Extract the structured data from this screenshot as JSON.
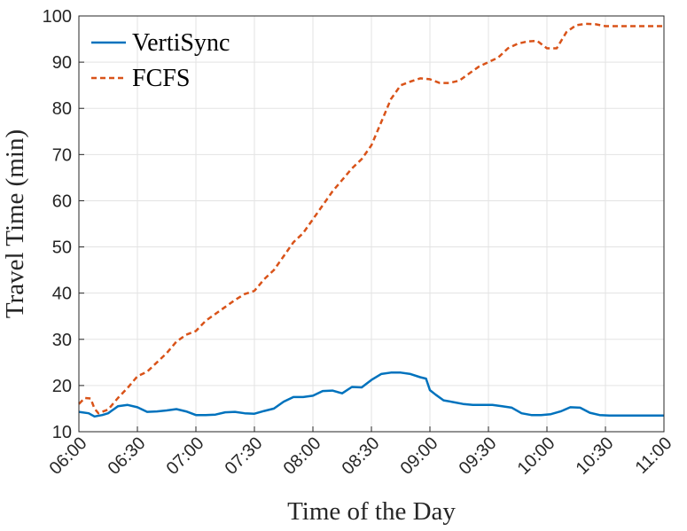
{
  "chart_data": {
    "type": "line",
    "title": "",
    "xlabel": "Time of the Day",
    "ylabel": "Travel Time (min)",
    "xlim": [
      0,
      300
    ],
    "ylim": [
      10,
      100
    ],
    "x_ticks": [
      {
        "x": 0,
        "label": "06:00"
      },
      {
        "x": 30,
        "label": "06:30"
      },
      {
        "x": 60,
        "label": "07:00"
      },
      {
        "x": 90,
        "label": "07:30"
      },
      {
        "x": 120,
        "label": "08:00"
      },
      {
        "x": 150,
        "label": "08:30"
      },
      {
        "x": 180,
        "label": "09:00"
      },
      {
        "x": 210,
        "label": "09:30"
      },
      {
        "x": 240,
        "label": "10:00"
      },
      {
        "x": 270,
        "label": "10:30"
      },
      {
        "x": 300,
        "label": "11:00"
      }
    ],
    "y_ticks": [
      10,
      20,
      30,
      40,
      50,
      60,
      70,
      80,
      90,
      100
    ],
    "grid": true,
    "legend_position": "top-left",
    "series": [
      {
        "name": "VertiSync",
        "color": "#0072BD",
        "style": "solid",
        "points": [
          [
            0,
            14.3
          ],
          [
            5,
            14
          ],
          [
            8,
            13.3
          ],
          [
            12,
            13.6
          ],
          [
            15,
            14
          ],
          [
            20,
            15.5
          ],
          [
            25,
            15.8
          ],
          [
            30,
            15.3
          ],
          [
            35,
            14.3
          ],
          [
            40,
            14.4
          ],
          [
            45,
            14.6
          ],
          [
            50,
            14.9
          ],
          [
            55,
            14.4
          ],
          [
            60,
            13.6
          ],
          [
            65,
            13.6
          ],
          [
            70,
            13.7
          ],
          [
            75,
            14.2
          ],
          [
            80,
            14.3
          ],
          [
            85,
            14
          ],
          [
            90,
            13.9
          ],
          [
            95,
            14.5
          ],
          [
            100,
            15
          ],
          [
            105,
            16.5
          ],
          [
            110,
            17.5
          ],
          [
            115,
            17.5
          ],
          [
            120,
            17.8
          ],
          [
            125,
            18.8
          ],
          [
            130,
            18.9
          ],
          [
            135,
            18.3
          ],
          [
            140,
            19.7
          ],
          [
            145,
            19.6
          ],
          [
            150,
            21.2
          ],
          [
            155,
            22.5
          ],
          [
            160,
            22.8
          ],
          [
            165,
            22.8
          ],
          [
            170,
            22.5
          ],
          [
            175,
            21.8
          ],
          [
            178,
            21.5
          ],
          [
            180,
            19
          ],
          [
            183,
            18
          ],
          [
            187,
            16.8
          ],
          [
            192,
            16.4
          ],
          [
            197,
            16
          ],
          [
            202,
            15.8
          ],
          [
            207,
            15.8
          ],
          [
            212,
            15.8
          ],
          [
            217,
            15.5
          ],
          [
            222,
            15.2
          ],
          [
            227,
            14
          ],
          [
            232,
            13.6
          ],
          [
            237,
            13.6
          ],
          [
            242,
            13.8
          ],
          [
            247,
            14.4
          ],
          [
            252,
            15.3
          ],
          [
            257,
            15.2
          ],
          [
            262,
            14.1
          ],
          [
            267,
            13.6
          ],
          [
            272,
            13.5
          ],
          [
            277,
            13.5
          ],
          [
            282,
            13.5
          ],
          [
            287,
            13.5
          ],
          [
            292,
            13.5
          ],
          [
            300,
            13.5
          ]
        ]
      },
      {
        "name": "FCFS",
        "color": "#D95319",
        "style": "dashed",
        "points": [
          [
            0,
            16
          ],
          [
            3,
            17.3
          ],
          [
            6,
            17.2
          ],
          [
            8,
            15
          ],
          [
            10,
            14
          ],
          [
            15,
            14.8
          ],
          [
            20,
            17.3
          ],
          [
            25,
            19.5
          ],
          [
            30,
            22
          ],
          [
            35,
            23
          ],
          [
            40,
            25
          ],
          [
            45,
            27
          ],
          [
            50,
            29.5
          ],
          [
            55,
            31
          ],
          [
            60,
            31.8
          ],
          [
            65,
            34
          ],
          [
            70,
            35.5
          ],
          [
            75,
            37
          ],
          [
            80,
            38.5
          ],
          [
            85,
            39.8
          ],
          [
            90,
            40.5
          ],
          [
            95,
            43
          ],
          [
            100,
            45
          ],
          [
            105,
            48
          ],
          [
            110,
            51
          ],
          [
            115,
            53
          ],
          [
            120,
            56
          ],
          [
            125,
            59
          ],
          [
            130,
            62
          ],
          [
            135,
            64.5
          ],
          [
            140,
            67
          ],
          [
            145,
            69
          ],
          [
            150,
            72
          ],
          [
            155,
            77
          ],
          [
            160,
            82
          ],
          [
            165,
            85
          ],
          [
            170,
            85.8
          ],
          [
            175,
            86.5
          ],
          [
            180,
            86.3
          ],
          [
            185,
            85.5
          ],
          [
            190,
            85.5
          ],
          [
            195,
            86
          ],
          [
            200,
            87.5
          ],
          [
            205,
            89
          ],
          [
            210,
            90
          ],
          [
            215,
            91
          ],
          [
            220,
            93
          ],
          [
            225,
            94
          ],
          [
            230,
            94.5
          ],
          [
            235,
            94.6
          ],
          [
            240,
            93
          ],
          [
            245,
            93
          ],
          [
            250,
            96.5
          ],
          [
            255,
            98
          ],
          [
            260,
            98.3
          ],
          [
            265,
            98.2
          ],
          [
            270,
            97.8
          ],
          [
            275,
            97.8
          ],
          [
            280,
            97.8
          ],
          [
            285,
            97.8
          ],
          [
            290,
            97.8
          ],
          [
            300,
            97.8
          ]
        ]
      }
    ]
  }
}
